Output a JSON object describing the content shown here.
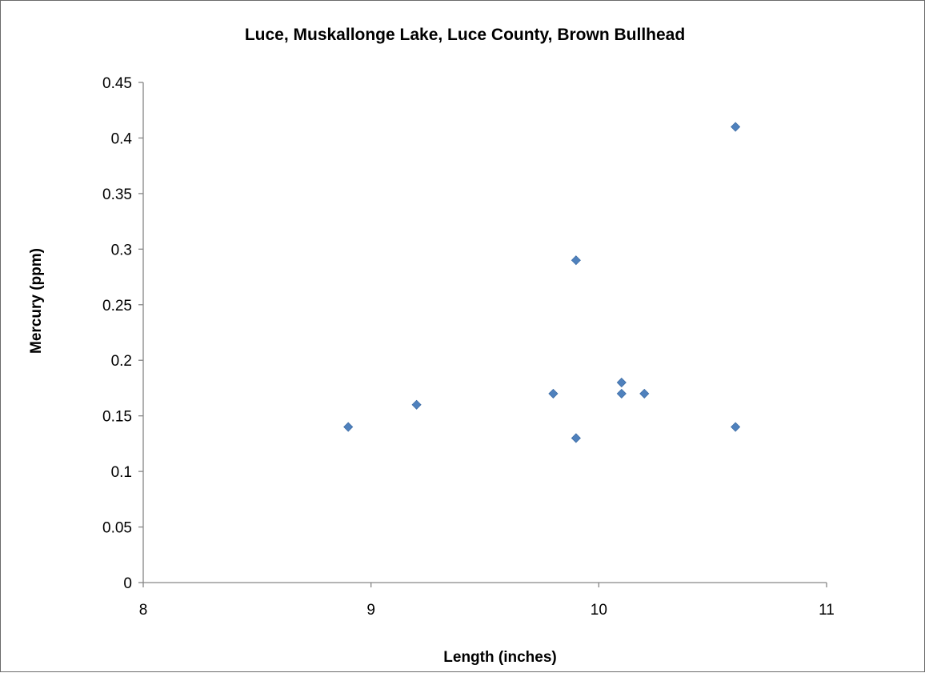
{
  "chart_data": {
    "type": "scatter",
    "title": "Luce, Muskallonge Lake, Luce County, Brown Bullhead",
    "xlabel": "Length (inches)",
    "ylabel": "Mercury (ppm)",
    "xlim": [
      8,
      11
    ],
    "ylim": [
      0,
      0.45
    ],
    "x_ticks": [
      "8",
      "9",
      "10",
      "11"
    ],
    "y_ticks": [
      "0",
      "0.05",
      "0.1",
      "0.15",
      "0.2",
      "0.25",
      "0.3",
      "0.35",
      "0.4",
      "0.45"
    ],
    "x_tick_values": [
      8,
      9,
      10,
      11
    ],
    "y_tick_values": [
      0,
      0.05,
      0.1,
      0.15,
      0.2,
      0.25,
      0.3,
      0.35,
      0.4,
      0.45
    ],
    "grid": false,
    "legend": "none",
    "marker": "diamond",
    "marker_color": "#4F81BD",
    "series": [
      {
        "points": [
          {
            "x": 8.9,
            "y": 0.14
          },
          {
            "x": 9.2,
            "y": 0.16
          },
          {
            "x": 9.8,
            "y": 0.17
          },
          {
            "x": 9.9,
            "y": 0.29
          },
          {
            "x": 9.9,
            "y": 0.13
          },
          {
            "x": 10.1,
            "y": 0.18
          },
          {
            "x": 10.1,
            "y": 0.17
          },
          {
            "x": 10.2,
            "y": 0.17
          },
          {
            "x": 10.6,
            "y": 0.41
          },
          {
            "x": 10.6,
            "y": 0.14
          }
        ]
      }
    ]
  }
}
